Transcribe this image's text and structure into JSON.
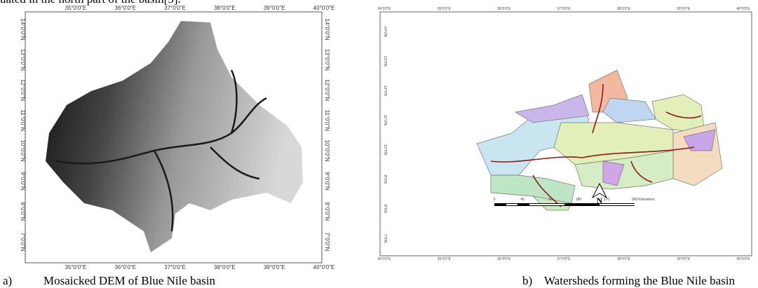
{
  "intro_text": "uated in the north part of the basin[5].",
  "figures": [
    {
      "label": "a)",
      "caption": "Mosaicked DEM of Blue Nile basin",
      "top_axis": [
        "35°0'0\"E",
        "36°0'0\"E",
        "37°0'0\"E",
        "38°0'0\"E",
        "39°0'0\"E",
        "40°0'0\"E"
      ],
      "bottom_axis": [
        "35°0'0\"E",
        "36°0'0\"E",
        "37°0'0\"E",
        "38°0'0\"E",
        "39°0'0\"E",
        "40°0'0\"E"
      ],
      "left_axis": [
        "14°0'0\"N",
        "13°0'0\"N",
        "12°0'0\"N",
        "11°0'0\"N",
        "10°0'0\"N",
        "9°0'0\"N",
        "8°0'0\"N",
        "7°0'0\"N"
      ],
      "right_axis": [
        "14°0'0\"N",
        "13°0'0\"N",
        "12°0'0\"N",
        "11°0'0\"N",
        "10°0'0\"N",
        "9°0'0\"N",
        "8°0'0\"N",
        "7°0'0\"N"
      ]
    },
    {
      "label": "b)",
      "caption": "Watersheds forming the Blue Nile basin",
      "top_axis": [
        "34°0'0\"E",
        "35°0'0\"E",
        "36°0'0\"E",
        "37°0'0\"E",
        "38°0'0\"E",
        "39°0'0\"E",
        "40°0'0\"E"
      ],
      "bottom_axis": [
        "34°0'0\"E",
        "35°0'0\"E",
        "36°0'0\"E",
        "37°0'0\"E",
        "38°0'0\"E",
        "39°0'0\"E",
        "40°0'0\"E"
      ],
      "left_axis": [
        "14°0'N",
        "13°0'N",
        "12°0'N",
        "11°0'N",
        "10°0'N",
        "9°0'N",
        "8°0'N",
        "7°0'N"
      ],
      "north": "N",
      "scale_labels": [
        "0",
        "45",
        "90",
        "180",
        "270",
        "360"
      ],
      "scale_unit": "Kilometers"
    }
  ]
}
